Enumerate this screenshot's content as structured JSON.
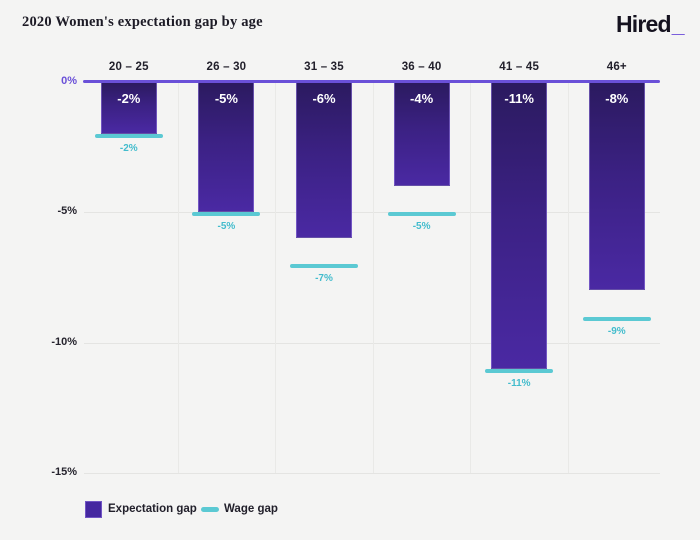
{
  "header": {
    "title": "2020 Women's expectation gap by age",
    "logo_text": "Hired",
    "logo_underscore": "_"
  },
  "chart_data": {
    "type": "bar",
    "title": "2020 Women's expectation gap by age",
    "categories": [
      "20 – 25",
      "26 – 30",
      "31 – 35",
      "36 – 40",
      "41 – 45",
      "46+"
    ],
    "series": [
      {
        "name": "Expectation gap",
        "style": "bar",
        "values": [
          -2,
          -5,
          -6,
          -4,
          -11,
          -8
        ],
        "labels": [
          "-2%",
          "-5%",
          "-6%",
          "-4%",
          "-11%",
          "-8%"
        ],
        "color": "#45259c"
      },
      {
        "name": "Wage gap",
        "style": "tick-line",
        "values": [
          -2,
          -5,
          -7,
          -5,
          -11,
          -9
        ],
        "labels": [
          "-2%",
          "-5%",
          "-7%",
          "-5%",
          "-11%",
          "-9%"
        ],
        "color": "#5bc9d3"
      }
    ],
    "yticks": [
      {
        "value": 0,
        "label": "0%"
      },
      {
        "value": -5,
        "label": "-5%"
      },
      {
        "value": -10,
        "label": "-10%"
      },
      {
        "value": -15,
        "label": "-15%"
      }
    ],
    "ylim": [
      -15,
      0
    ],
    "unit": "%",
    "grid": true,
    "legend_position": "bottom"
  },
  "legend": {
    "items": [
      {
        "label": "Expectation gap",
        "swatch": "square"
      },
      {
        "label": "Wage gap",
        "swatch": "line"
      }
    ]
  },
  "colors": {
    "background": "#f4f4f3",
    "bar_gradient_top": "#2b1a5f",
    "bar_gradient_bottom": "#4a29a3",
    "zero_axis_purple": "#6a50d8",
    "wage_cyan": "#5bc9d3",
    "wage_label_cyan": "#43bccd",
    "text_dark": "#22202b",
    "logo_underscore_purple": "#6a4ad9"
  }
}
